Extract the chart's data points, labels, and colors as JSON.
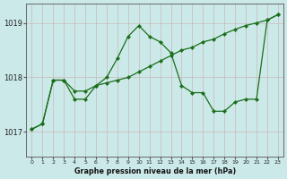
{
  "title": "Graphe pression niveau de la mer (hPa)",
  "bg_color": "#cce9e9",
  "grid_color": "#b0b0b0",
  "line_color": "#1a6e1a",
  "marker_color": "#1a6e1a",
  "xlim": [
    -0.5,
    23.5
  ],
  "ylim": [
    1016.55,
    1019.35
  ],
  "yticks": [
    1017,
    1018,
    1019
  ],
  "xticks": [
    0,
    1,
    2,
    3,
    4,
    5,
    6,
    7,
    8,
    9,
    10,
    11,
    12,
    13,
    14,
    15,
    16,
    17,
    18,
    19,
    20,
    21,
    22,
    23
  ],
  "series1": {
    "x": [
      0,
      1,
      2,
      3,
      4,
      5,
      6,
      7,
      8,
      9,
      10,
      11,
      12,
      13,
      14,
      15,
      16,
      17,
      18,
      19,
      20,
      21,
      22,
      23
    ],
    "y": [
      1017.05,
      1017.15,
      1017.95,
      1017.95,
      1017.75,
      1017.75,
      1017.85,
      1017.9,
      1017.95,
      1018.0,
      1018.1,
      1018.2,
      1018.3,
      1018.4,
      1018.5,
      1018.55,
      1018.65,
      1018.7,
      1018.8,
      1018.88,
      1018.95,
      1019.0,
      1019.05,
      1019.15
    ]
  },
  "series2": {
    "x": [
      0,
      1,
      2,
      3,
      4,
      5,
      6,
      7,
      8,
      9,
      10,
      11,
      12,
      13,
      14,
      15,
      16,
      17,
      18,
      19,
      20,
      21,
      22,
      23
    ],
    "y": [
      1017.05,
      1017.15,
      1017.95,
      1017.95,
      1017.6,
      1017.6,
      1017.85,
      1018.0,
      1018.35,
      1018.75,
      1018.95,
      1018.75,
      1018.65,
      1018.45,
      1017.85,
      1017.72,
      1017.72,
      1017.38,
      1017.38,
      1017.55,
      1017.6,
      1017.6,
      1019.05,
      1019.15
    ]
  }
}
